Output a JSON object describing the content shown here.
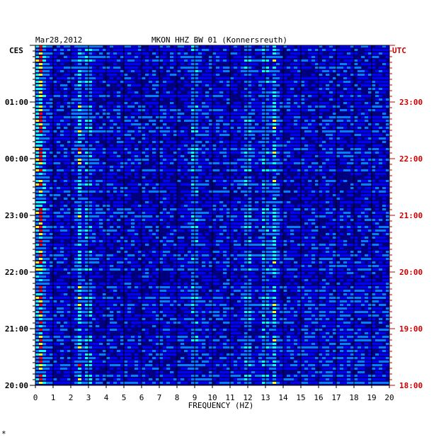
{
  "chart_data": {
    "type": "heatmap",
    "title": "MKON HHZ BW 01 (Konnersreuth)",
    "date": "Mar28,2012",
    "left_tz_label": "CES",
    "right_tz_label": "UTC",
    "xlabel": "FREQUENCY (HZ)",
    "xlim": [
      0,
      20
    ],
    "x_ticks": [
      "0",
      "1",
      "2",
      "3",
      "4",
      "5",
      "6",
      "7",
      "8",
      "9",
      "10",
      "11",
      "12",
      "13",
      "14",
      "15",
      "16",
      "17",
      "18",
      "19",
      "20"
    ],
    "y_time_range_utc": [
      "18:00",
      "24:00"
    ],
    "left_time_labels": [
      "01:00",
      "00:00",
      "23:00",
      "22:00",
      "21:00",
      "20:00"
    ],
    "right_time_labels": [
      "23:00",
      "22:00",
      "21:00",
      "20:00",
      "19:00",
      "18:00"
    ],
    "colormap": [
      "#00008b",
      "#0000ff",
      "#0080ff",
      "#00ffff",
      "#ffff00",
      "#ff0000"
    ],
    "strong_frequency_bands_hz": [
      0.3,
      2.5,
      3.0,
      9.0,
      12.0,
      13.0,
      13.5
    ],
    "footer_mark": "*"
  },
  "colors": {
    "background_plot": "#00007f",
    "right_axis": "#cc0000",
    "left_axis": "#000000"
  }
}
